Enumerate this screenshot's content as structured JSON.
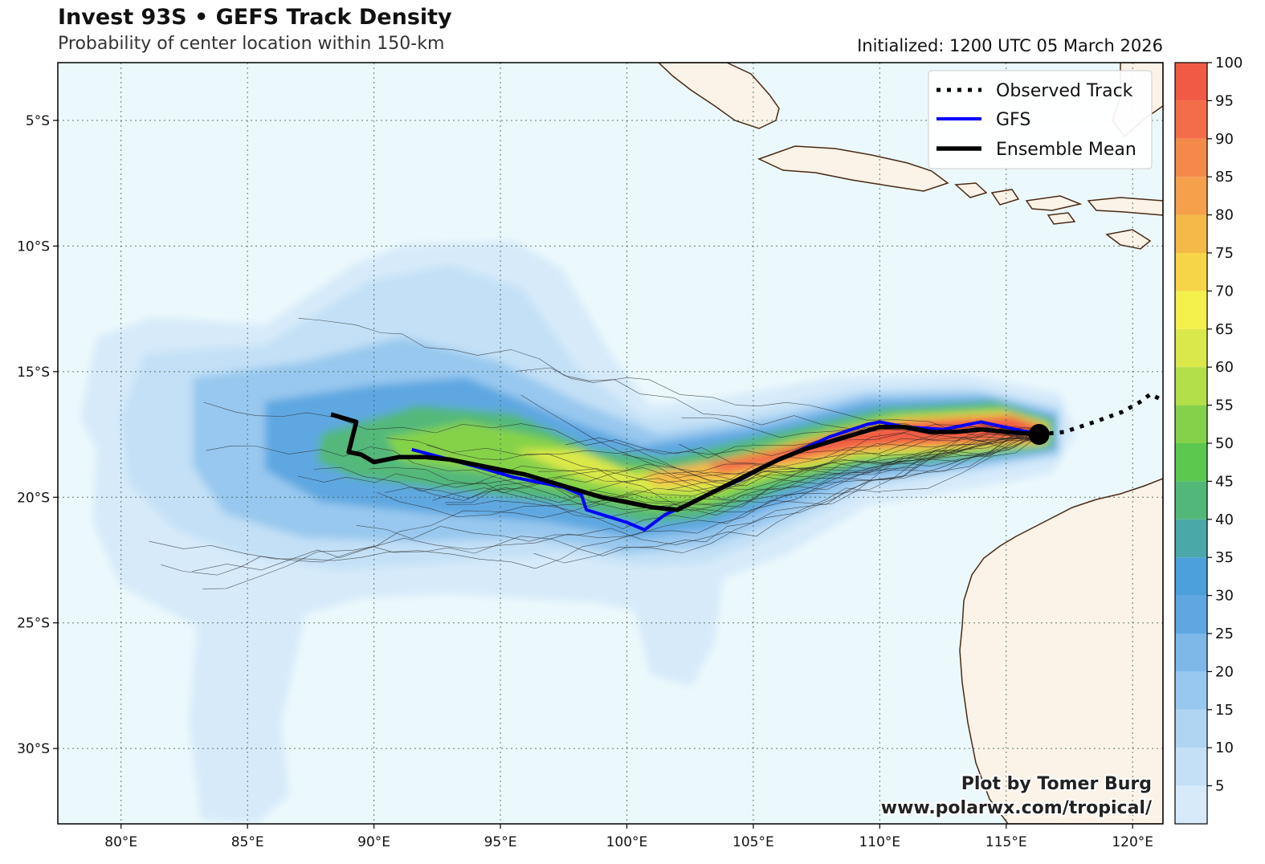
{
  "header": {
    "title": "Invest 93S • GEFS Track Density",
    "subtitle": "Probability of center location within 150-km",
    "initialized": "Initialized: 1200 UTC 05 March 2026"
  },
  "credit": {
    "line1": "Plot by Tomer Burg",
    "line2": "www.polarwx.com/tropical/"
  },
  "colors": {
    "ocean": "#ecf9fc",
    "land": "#fbf3e8",
    "coast": "#4a2a14",
    "gfs": "#0000ff",
    "mean": "#000000",
    "observed": "#000000"
  },
  "chart_data": {
    "type": "heatmap",
    "extent": {
      "lon": [
        77.5,
        121.2
      ],
      "lat": [
        -33,
        -2.7
      ]
    },
    "xticks": [
      {
        "value": 80,
        "label": "80°E"
      },
      {
        "value": 85,
        "label": "85°E"
      },
      {
        "value": 90,
        "label": "90°E"
      },
      {
        "value": 95,
        "label": "95°E"
      },
      {
        "value": 100,
        "label": "100°E"
      },
      {
        "value": 105,
        "label": "105°E"
      },
      {
        "value": 110,
        "label": "110°E"
      },
      {
        "value": 115,
        "label": "115°E"
      },
      {
        "value": 120,
        "label": "120°E"
      }
    ],
    "yticks": [
      {
        "value": -5,
        "label": "5°S"
      },
      {
        "value": -10,
        "label": "10°S"
      },
      {
        "value": -15,
        "label": "15°S"
      },
      {
        "value": -20,
        "label": "20°S"
      },
      {
        "value": -25,
        "label": "25°S"
      },
      {
        "value": -30,
        "label": "30°S"
      }
    ],
    "grid": true,
    "legend": {
      "position": "top-right",
      "entries": [
        {
          "label": "Observed Track",
          "style": "dotted",
          "color": "#000000"
        },
        {
          "label": "GFS",
          "style": "solid",
          "color": "#0000ff"
        },
        {
          "label": "Ensemble Mean",
          "style": "solid-thick",
          "color": "#000000"
        }
      ]
    },
    "colorbar": {
      "levels": [
        0,
        5,
        10,
        15,
        20,
        25,
        30,
        35,
        40,
        45,
        50,
        55,
        60,
        65,
        70,
        75,
        80,
        85,
        90,
        95,
        100
      ],
      "labels": [
        "5",
        "10",
        "15",
        "20",
        "25",
        "30",
        "35",
        "40",
        "45",
        "50",
        "55",
        "60",
        "65",
        "70",
        "75",
        "80",
        "85",
        "90",
        "95",
        "100"
      ],
      "colors": [
        "#d6eafa",
        "#c3e0f6",
        "#afd5f3",
        "#98c8ef",
        "#7db8e9",
        "#5ea7e1",
        "#4b9fdb",
        "#4aa8a8",
        "#52b87a",
        "#5cc84e",
        "#85d24a",
        "#b3df48",
        "#dbe84a",
        "#f4f04c",
        "#f6d548",
        "#f5b948",
        "#f5a04a",
        "#f48a4a",
        "#f36e48",
        "#f15b45"
      ]
    },
    "observed_track": {
      "lon": [
        116.3,
        117.3,
        118.5,
        119.6,
        120.3,
        120.7,
        121.1
      ],
      "lat": [
        -17.5,
        -17.4,
        -17.0,
        -16.6,
        -16.2,
        -15.9,
        -16.1
      ]
    },
    "gfs_track": {
      "lon": [
        116.3,
        114.0,
        112.5,
        111.0,
        110.0,
        109.5,
        108.0,
        106.0,
        104.5,
        103.0,
        101.5,
        100.7,
        100.0,
        98.4,
        98.2,
        97.5,
        96.5,
        95.5,
        94.5,
        93.0,
        91.5
      ],
      "lat": [
        -17.5,
        -17.0,
        -17.3,
        -17.2,
        -17.0,
        -17.1,
        -17.6,
        -18.5,
        -19.3,
        -20.0,
        -20.7,
        -21.3,
        -21.0,
        -20.5,
        -19.9,
        -19.6,
        -19.4,
        -19.2,
        -18.9,
        -18.5,
        -18.1
      ]
    },
    "ensemble_mean": {
      "lon": [
        116.3,
        115.0,
        114.0,
        113.0,
        112.0,
        111.0,
        110.0,
        109.0,
        108.0,
        107.0,
        106.0,
        105.0,
        104.0,
        103.0,
        102.0,
        101.0,
        100.0,
        99.0,
        98.0,
        97.0,
        96.0,
        95.0,
        94.0,
        93.0,
        92.0,
        91.0,
        90.5,
        90.0,
        89.5,
        89.0,
        89.3,
        88.3
      ],
      "lat": [
        -17.5,
        -17.4,
        -17.3,
        -17.4,
        -17.4,
        -17.2,
        -17.2,
        -17.5,
        -17.8,
        -18.1,
        -18.5,
        -19.0,
        -19.5,
        -20.0,
        -20.5,
        -20.4,
        -20.2,
        -20.0,
        -19.7,
        -19.4,
        -19.1,
        -18.9,
        -18.7,
        -18.5,
        -18.4,
        -18.4,
        -18.5,
        -18.6,
        -18.3,
        -18.2,
        -17.0,
        -16.7
      ]
    },
    "current_position": {
      "lon": 116.3,
      "lat": -17.5
    }
  }
}
